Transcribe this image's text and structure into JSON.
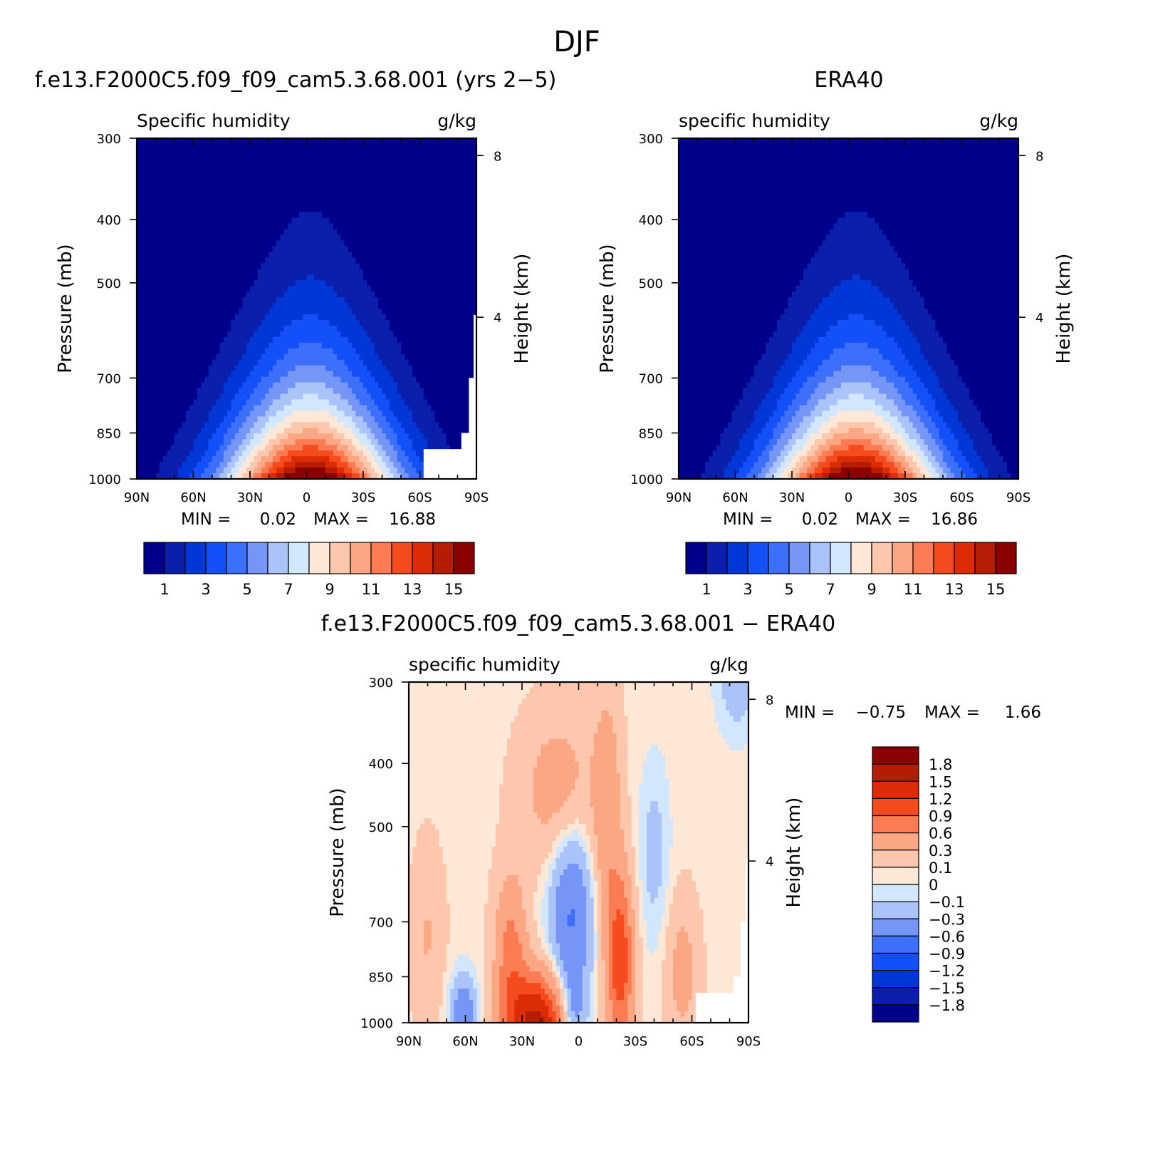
{
  "figure": {
    "title": "DJF"
  },
  "palettes": {
    "absolute": [
      "#00008b",
      "#0a1fab",
      "#0037d6",
      "#1450f7",
      "#3c6ffa",
      "#7596f7",
      "#aac3f8",
      "#d2e7fc",
      "#fde8d8",
      "#fcc7ac",
      "#fba784",
      "#fb7c52",
      "#f64a1f",
      "#db2c06",
      "#b41c04",
      "#8b0000"
    ],
    "difference": [
      "#00008b",
      "#0a1fab",
      "#0037d6",
      "#1450f7",
      "#3c6ffa",
      "#7596f7",
      "#aac3f8",
      "#d2e7fc",
      "#fde8d8",
      "#fcc7ac",
      "#fba784",
      "#fb7c52",
      "#f64a1f",
      "#db2c06",
      "#b41c04",
      "#8b0000"
    ]
  },
  "chart_data": [
    {
      "type": "heatmap",
      "title": "f.e13.F2000C5.f09_f09_cam5.3.68.001 (yrs 2−5)",
      "variable": "Specific humidity",
      "units": "g/kg",
      "ylabel": "Pressure (mb)",
      "ylabel_right": "Height (km)",
      "x_ticks": [
        "90N",
        "60N",
        "30N",
        "0",
        "30S",
        "60S",
        "90S"
      ],
      "xlim": [
        90,
        -90
      ],
      "y_ticks": [
        300,
        400,
        500,
        700,
        850,
        1000
      ],
      "y_right_ticks": [
        8,
        4
      ],
      "ylim": [
        1000,
        300
      ],
      "yscale": "log",
      "min_label": "MIN =",
      "min_value": "0.02",
      "max_label": "MAX =",
      "max_value": "16.88",
      "colorbar_labels": [
        "1",
        "3",
        "5",
        "7",
        "9",
        "11",
        "13",
        "15"
      ],
      "field_peak": 16.88,
      "peak_lat": -2,
      "missing_mask": "topography south of 55S"
    },
    {
      "type": "heatmap",
      "title": "ERA40",
      "variable": "specific humidity",
      "units": "g/kg",
      "ylabel": "Pressure (mb)",
      "ylabel_right": "Height (km)",
      "x_ticks": [
        "90N",
        "60N",
        "30N",
        "0",
        "30S",
        "60S",
        "90S"
      ],
      "xlim": [
        90,
        -90
      ],
      "y_ticks": [
        300,
        400,
        500,
        700,
        850,
        1000
      ],
      "y_right_ticks": [
        8,
        4
      ],
      "ylim": [
        1000,
        300
      ],
      "yscale": "log",
      "min_label": "MIN =",
      "min_value": "0.02",
      "max_label": "MAX =",
      "max_value": "16.86",
      "colorbar_labels": [
        "1",
        "3",
        "5",
        "7",
        "9",
        "11",
        "13",
        "15"
      ],
      "field_peak": 16.86,
      "peak_lat": -4
    },
    {
      "type": "heatmap",
      "title": "f.e13.F2000C5.f09_f09_cam5.3.68.001 − ERA40",
      "variable": "specific humidity",
      "units": "g/kg",
      "ylabel": "Pressure (mb)",
      "ylabel_right": "Height (km)",
      "x_ticks": [
        "90N",
        "60N",
        "30N",
        "0",
        "30S",
        "60S",
        "90S"
      ],
      "xlim": [
        90,
        -90
      ],
      "y_ticks": [
        300,
        400,
        500,
        700,
        850,
        1000
      ],
      "y_right_ticks": [
        8,
        4
      ],
      "ylim": [
        1000,
        300
      ],
      "yscale": "log",
      "min_label": "MIN =",
      "min_value": "−0.75",
      "max_label": "MAX =",
      "max_value": "1.66",
      "colorbar_labels": [
        "1.8",
        "1.5",
        "1.2",
        "0.9",
        "0.6",
        "0.3",
        "0.1",
        "0",
        "−0.1",
        "−0.3",
        "−0.6",
        "−0.9",
        "−1.2",
        "−1.5",
        "−1.8"
      ],
      "levels": [
        -1.8,
        -1.5,
        -1.2,
        -0.9,
        -0.6,
        -0.3,
        -0.1,
        0,
        0.1,
        0.3,
        0.6,
        0.9,
        1.2,
        1.5,
        1.8
      ],
      "field_range": [
        -0.75,
        1.66
      ]
    }
  ]
}
